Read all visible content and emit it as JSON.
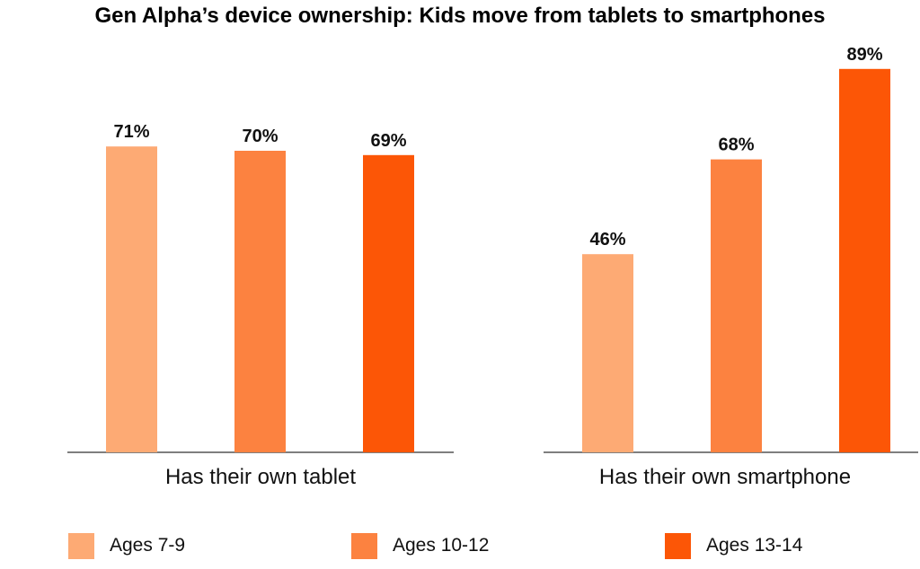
{
  "chart_data": {
    "type": "bar",
    "title": "Gen Alpha’s device ownership: Kids move from tablets to smartphones",
    "groups": [
      "Has their own tablet",
      "Has their own smartphone"
    ],
    "series": [
      {
        "name": "Ages 7-9",
        "color": "#FDAA74",
        "values": [
          71,
          46
        ],
        "labels": [
          "71%",
          "46%"
        ]
      },
      {
        "name": "Ages 10-12",
        "color": "#FC8240",
        "values": [
          70,
          68
        ],
        "labels": [
          "70%",
          "68%"
        ]
      },
      {
        "name": "Ages 13-14",
        "color": "#FC5606",
        "values": [
          69,
          89
        ],
        "labels": [
          "69%",
          "89%"
        ]
      }
    ],
    "ylim": [
      0,
      100
    ],
    "grid": false,
    "legend_position": "bottom"
  }
}
